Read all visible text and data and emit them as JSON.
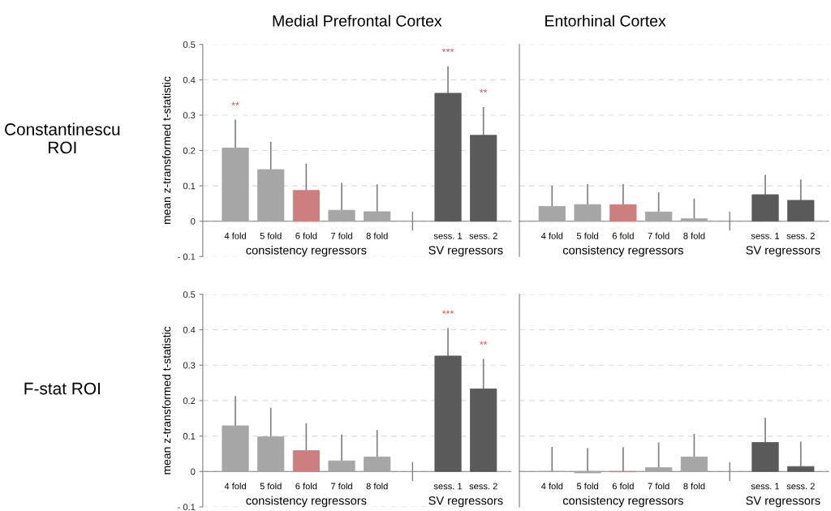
{
  "chart_data": [
    {
      "type": "bar",
      "title": "Medial Prefrontal Cortex",
      "subtitle": "Constantinescu\nROI",
      "ylabel": "mean z-transformed t-statistic",
      "categories": [
        "4 fold",
        "5 fold",
        "6 fold",
        "7 fold",
        "8 fold",
        null,
        "sess. 1",
        "sess. 2"
      ],
      "values": [
        0.207,
        0.146,
        0.087,
        0.031,
        0.027,
        null,
        0.362,
        0.243
      ],
      "errors": [
        [
          0.207,
          0.287
        ],
        [
          0.146,
          0.225
        ],
        [
          0.087,
          0.163
        ],
        [
          0.031,
          0.108
        ],
        [
          0.027,
          0.104
        ],
        null,
        [
          0.362,
          0.438
        ],
        [
          0.243,
          0.323
        ]
      ],
      "colors": [
        "#a6a6a6",
        "#a6a6a6",
        "#cd7f7f",
        "#a6a6a6",
        "#a6a6a6",
        "#a6a6a6",
        "#5a5a5a",
        "#5a5a5a"
      ],
      "ylim": [
        -0.1,
        0.5
      ],
      "yticks": [
        {
          "value": -0.1,
          "label": "- 0.1"
        },
        0,
        0.1,
        0.2,
        0.3,
        0.4,
        0.5
      ],
      "grid": "y",
      "annotations": [
        "consistency regressors",
        "SV regressors",
        {
          "text": "**",
          "x": "4 fold",
          "y": 0.287
        },
        {
          "text": "***",
          "x": "sess. 1",
          "y": 0.438
        },
        {
          "text": "**",
          "x": "sess. 2",
          "y": 0.323
        }
      ]
    },
    {
      "type": "bar",
      "title": "Entorhinal Cortex",
      "categories": [
        "4 fold",
        "5 fold",
        "6 fold",
        "7 fold",
        "8 fold",
        null,
        "sess. 1",
        "sess. 2"
      ],
      "values": [
        0.042,
        0.047,
        0.047,
        0.026,
        0.007,
        null,
        0.075,
        0.059
      ],
      "errors": [
        [
          0.042,
          0.1
        ],
        [
          0.047,
          0.105
        ],
        [
          0.047,
          0.105
        ],
        [
          0.026,
          0.082
        ],
        [
          0.007,
          0.064
        ],
        null,
        [
          0.075,
          0.131
        ],
        [
          0.059,
          0.118
        ]
      ],
      "colors": [
        "#a6a6a6",
        "#a6a6a6",
        "#cd7f7f",
        "#a6a6a6",
        "#a6a6a6",
        "#a6a6a6",
        "#5a5a5a",
        "#5a5a5a"
      ],
      "ylim": [
        -0.1,
        0.5
      ],
      "yticks": [
        0,
        0.1,
        0.2,
        0.3,
        0.4,
        0.5
      ],
      "grid": "y",
      "tick_labels": "x",
      "annotations": [
        "consistency regressors",
        "SV regressors"
      ]
    },
    {
      "type": "bar",
      "subtitle": "F-stat ROI",
      "ylabel": "mean z-transformed t-statistic",
      "categories": [
        "4 fold",
        "5 fold",
        "6 fold",
        "7 fold",
        "8 fold",
        null,
        "sess. 1",
        "sess. 2"
      ],
      "values": [
        0.129,
        0.098,
        0.059,
        0.03,
        0.041,
        null,
        0.326,
        0.233
      ],
      "errors": [
        [
          0.129,
          0.213
        ],
        [
          0.098,
          0.18
        ],
        [
          0.059,
          0.136
        ],
        [
          0.03,
          0.104
        ],
        [
          0.041,
          0.117
        ],
        null,
        [
          0.326,
          0.405
        ],
        [
          0.233,
          0.318
        ]
      ],
      "colors": [
        "#a6a6a6",
        "#a6a6a6",
        "#cd7f7f",
        "#a6a6a6",
        "#a6a6a6",
        "#a6a6a6",
        "#5a5a5a",
        "#5a5a5a"
      ],
      "ylim": [
        -0.1,
        0.5
      ],
      "yticks": [
        {
          "value": -0.1,
          "label": "- 0.1"
        },
        0,
        0.1,
        0.2,
        0.3,
        0.4,
        0.5
      ],
      "grid": "y",
      "annotations": [
        "consistency regressors",
        "SV regressors",
        {
          "text": "***",
          "x": "sess. 1",
          "y": 0.405
        },
        {
          "text": "**",
          "x": "sess. 2",
          "y": 0.318
        }
      ]
    },
    {
      "type": "bar",
      "categories": [
        "4 fold",
        "5 fold",
        "6 fold",
        "7 fold",
        "8 fold",
        null,
        "sess. 1",
        "sess. 2"
      ],
      "values": [
        0,
        -0.004,
        -0.001,
        0.011,
        0.041,
        null,
        0.082,
        0.014
      ],
      "errors": [
        [
          0,
          0.069
        ],
        [
          -0.004,
          0.066
        ],
        [
          -0.001,
          0.069
        ],
        [
          0.011,
          0.082
        ],
        [
          0.041,
          0.106
        ],
        null,
        [
          0.082,
          0.152
        ],
        [
          0.014,
          0.084
        ]
      ],
      "colors": [
        "#a6a6a6",
        "#a6a6a6",
        "#cd7f7f",
        "#a6a6a6",
        "#a6a6a6",
        "#a6a6a6",
        "#5a5a5a",
        "#5a5a5a"
      ],
      "ylim": [
        -0.1,
        0.5
      ],
      "yticks": [
        0,
        0.1,
        0.2,
        0.3,
        0.4,
        0.5
      ],
      "grid": "y",
      "tick_labels": "x",
      "annotations": [
        "consistency regressors",
        "SV regressors"
      ]
    }
  ]
}
